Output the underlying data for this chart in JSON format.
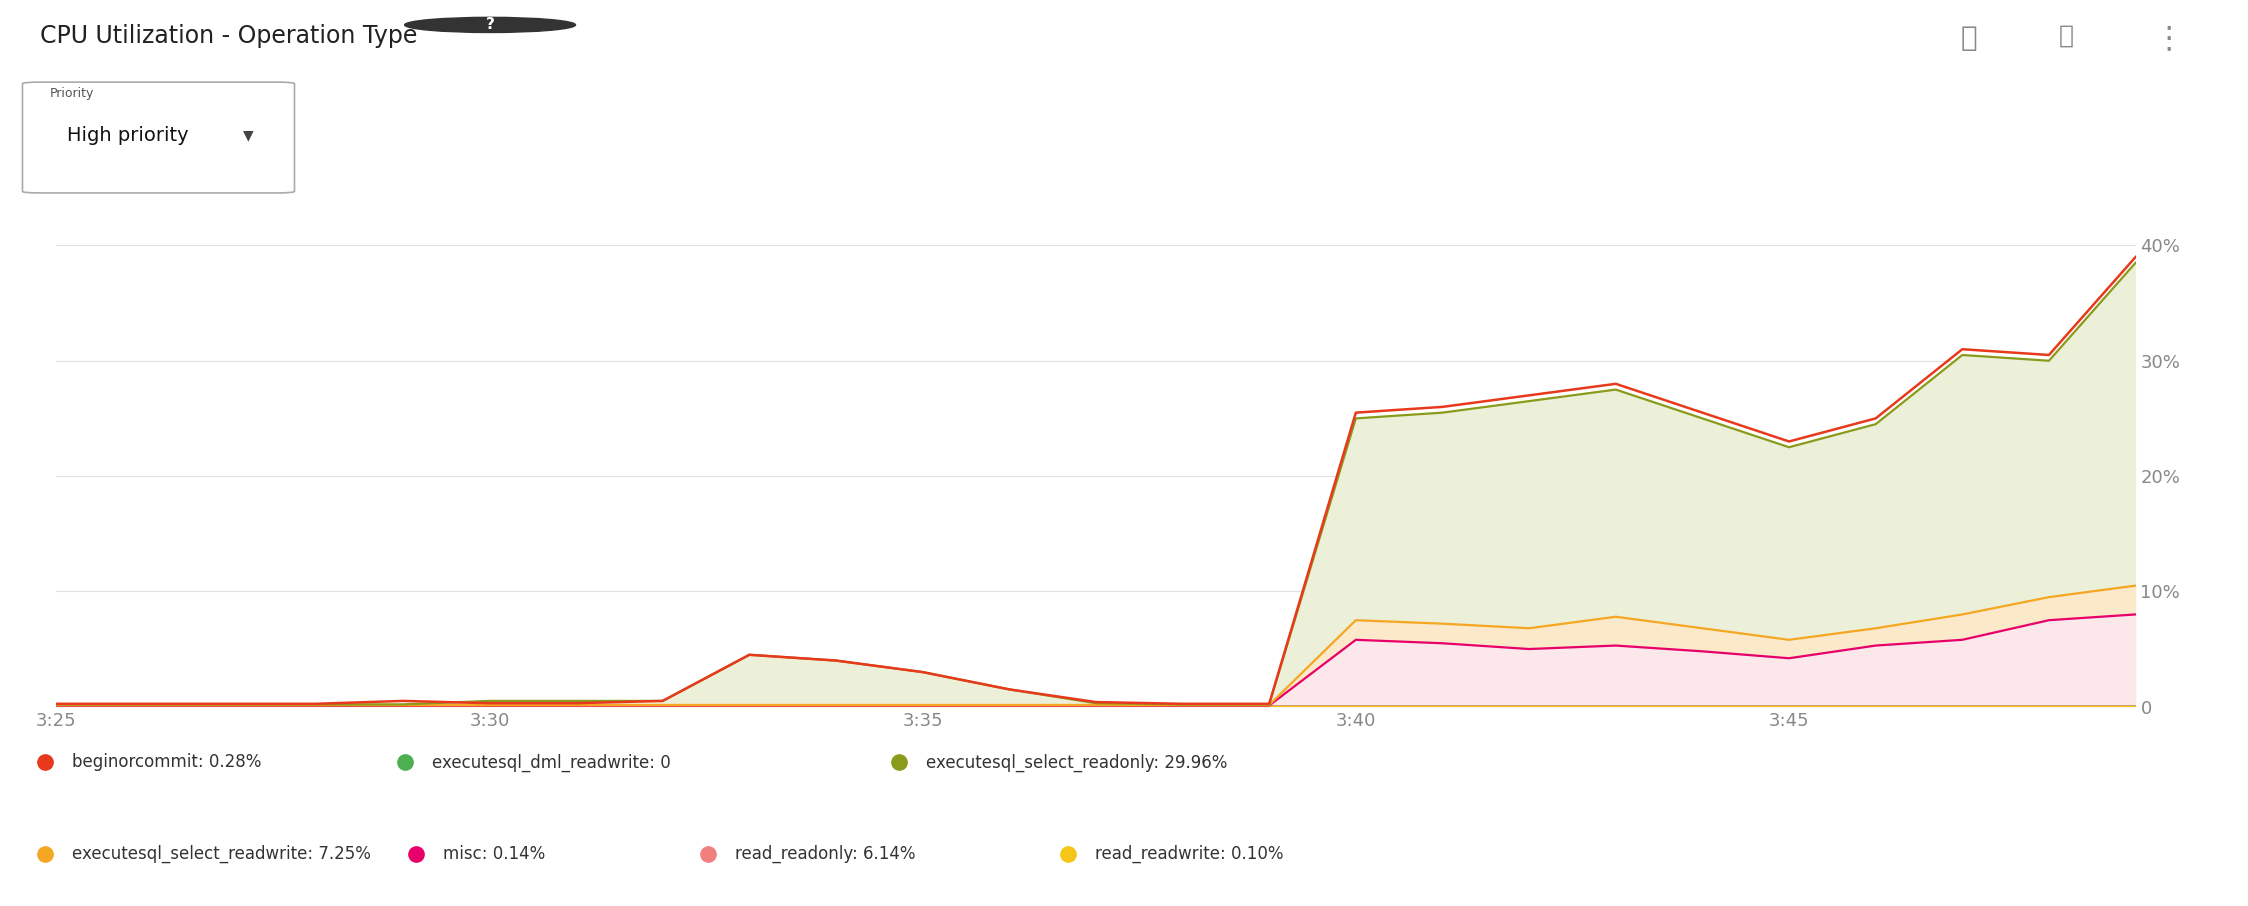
{
  "title": "CPU Utilization - Operation Type",
  "background_color": "#ffffff",
  "ylim": [
    0,
    44
  ],
  "yticks": [
    0,
    10,
    20,
    30,
    40
  ],
  "ytick_labels": [
    "0",
    "10%",
    "20%",
    "30%",
    "40%"
  ],
  "xtick_labels": [
    "3:25",
    "3:30",
    "3:35",
    "3:40",
    "3:45"
  ],
  "xtick_positions": [
    0,
    5,
    10,
    15,
    20
  ],
  "grid_color": "#e0e0e0",
  "n_points": 25,
  "series": {
    "executesql_select_readonly": {
      "color": "#8a9a1a",
      "fill_color": "#edf0d8",
      "fill_alpha": 1.0,
      "label": "executesql_select_readonly: 29.96%",
      "data": [
        0.2,
        0.2,
        0.2,
        0.2,
        0.2,
        0.5,
        0.5,
        0.5,
        4.5,
        4.0,
        3.0,
        1.5,
        0.3,
        0.2,
        0.2,
        25.0,
        25.5,
        26.5,
        27.5,
        25.0,
        22.5,
        24.5,
        30.5,
        30.0,
        38.5
      ]
    },
    "executesql_select_readwrite": {
      "color": "#f5a623",
      "fill_color": "#fde9c8",
      "fill_alpha": 0.9,
      "label": "executesql_select_readwrite: 7.25%",
      "data": [
        0.15,
        0.15,
        0.15,
        0.15,
        0.15,
        0.15,
        0.15,
        0.15,
        0.15,
        0.15,
        0.15,
        0.15,
        0.15,
        0.15,
        0.15,
        7.5,
        7.2,
        6.8,
        7.8,
        6.8,
        5.8,
        6.8,
        8.0,
        9.5,
        10.5
      ]
    },
    "misc": {
      "color": "#e8006a",
      "fill_color": "#fde8f0",
      "fill_alpha": 0.85,
      "label": "misc: 0.14%",
      "data": [
        0.1,
        0.1,
        0.1,
        0.1,
        0.1,
        0.1,
        0.1,
        0.1,
        0.1,
        0.1,
        0.1,
        0.1,
        0.1,
        0.1,
        0.1,
        5.8,
        5.5,
        5.0,
        5.3,
        4.8,
        4.2,
        5.3,
        5.8,
        7.5,
        8.0
      ]
    },
    "beginorcommit": {
      "color": "#e8391c",
      "label": "beginorcommit: 0.28%",
      "data": [
        0.25,
        0.25,
        0.25,
        0.25,
        0.5,
        0.3,
        0.3,
        0.5,
        4.5,
        4.0,
        3.0,
        1.5,
        0.4,
        0.25,
        0.25,
        25.5,
        26.0,
        27.0,
        28.0,
        25.5,
        23.0,
        25.0,
        31.0,
        30.5,
        39.0
      ]
    },
    "executesql_dml_readwrite": {
      "color": "#4caf50",
      "label": "executesql_dml_readwrite: 0",
      "data": [
        0.05,
        0.05,
        0.05,
        0.05,
        0.05,
        0.05,
        0.05,
        0.05,
        0.05,
        0.05,
        0.05,
        0.05,
        0.05,
        0.05,
        0.05,
        0.05,
        0.05,
        0.05,
        0.05,
        0.05,
        0.05,
        0.05,
        0.05,
        0.05,
        0.05
      ]
    },
    "read_readonly": {
      "color": "#f08080",
      "fill_color": "#fce8ee",
      "fill_alpha": 0.7,
      "label": "read_readonly: 6.14%",
      "data": [
        0.05,
        0.05,
        0.05,
        0.05,
        0.05,
        0.05,
        0.05,
        0.05,
        0.05,
        0.05,
        0.05,
        0.05,
        0.05,
        0.05,
        0.05,
        0.05,
        0.05,
        0.05,
        0.05,
        0.05,
        0.05,
        0.05,
        0.05,
        0.05,
        0.05
      ]
    },
    "read_readwrite": {
      "color": "#f5c518",
      "label": "read_readwrite: 0.10%",
      "data": [
        0.05,
        0.05,
        0.05,
        0.05,
        0.05,
        0.05,
        0.05,
        0.05,
        0.05,
        0.05,
        0.05,
        0.05,
        0.05,
        0.05,
        0.05,
        0.05,
        0.05,
        0.05,
        0.05,
        0.05,
        0.05,
        0.05,
        0.05,
        0.05,
        0.05
      ]
    }
  },
  "legend_row1": [
    {
      "label": "beginorcommit: 0.28%",
      "color": "#e8391c"
    },
    {
      "label": "executesql_dml_readwrite: 0",
      "color": "#4caf50"
    },
    {
      "label": "executesql_select_readonly: 29.96%",
      "color": "#8a9a1a"
    }
  ],
  "legend_row2": [
    {
      "label": "executesql_select_readwrite: 7.25%",
      "color": "#f5a623"
    },
    {
      "label": "misc: 0.14%",
      "color": "#e8006a"
    },
    {
      "label": "read_readonly: 6.14%",
      "color": "#f08080"
    },
    {
      "label": "read_readwrite: 0.10%",
      "color": "#f5c518"
    }
  ]
}
